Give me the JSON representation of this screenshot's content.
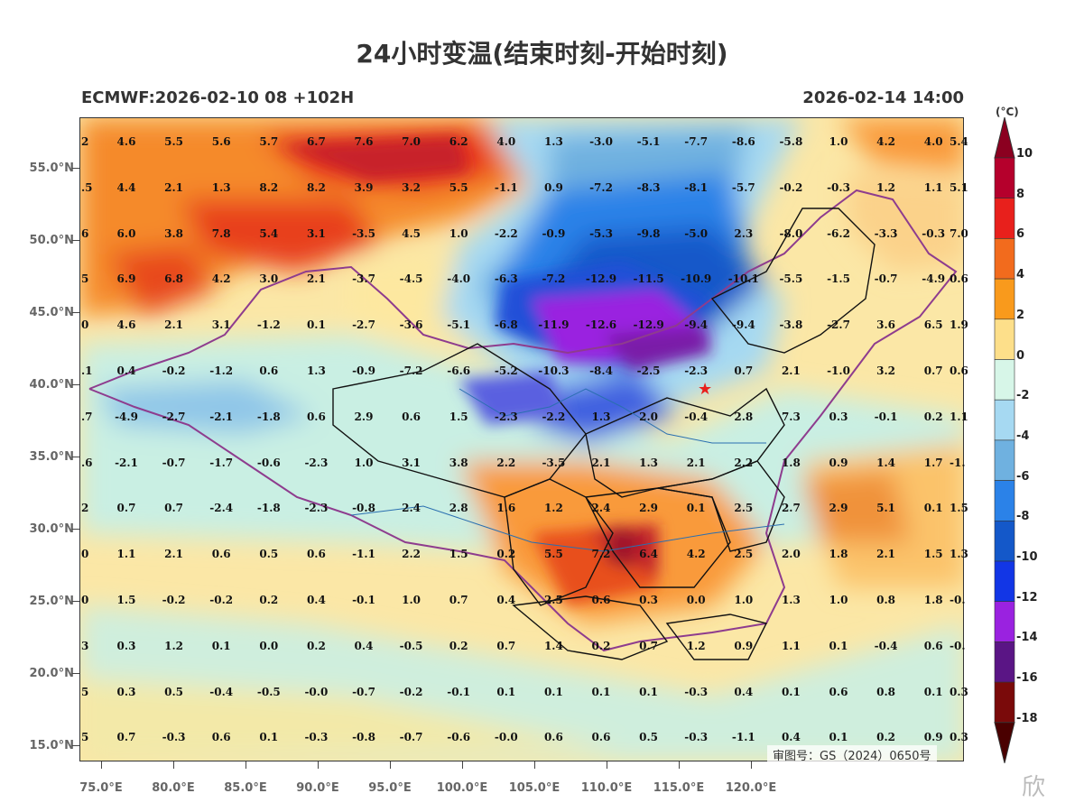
{
  "title": "24小时变温(结束时刻-开始时刻)",
  "subtitle_left": "ECMWF:2026-02-10 08 +102H",
  "subtitle_right": "2026-02-14 14:00",
  "colorbar": {
    "unit": "(°C)",
    "labels": [
      "10",
      "8",
      "6",
      "4",
      "2",
      "0",
      "-2",
      "-4",
      "-6",
      "-8",
      "-10",
      "-12",
      "-14",
      "-16",
      "-18"
    ],
    "colors": [
      "#8b0020",
      "#b5002c",
      "#e8201c",
      "#f26b1d",
      "#f99a1c",
      "#fddf8a",
      "#d7f6e8",
      "#a6d9f2",
      "#6fb1e0",
      "#2b82e8",
      "#1458c9",
      "#1236e6",
      "#9a22e0",
      "#5a1585",
      "#7a0a0a",
      "#4a0000"
    ]
  },
  "lat_labels": [
    "55.0°N",
    "50.0°N",
    "45.0°N",
    "40.0°N",
    "35.0°N",
    "30.0°N",
    "25.0°N",
    "20.0°N",
    "15.0°N"
  ],
  "lon_labels": [
    "75.0°E",
    "80.0°E",
    "85.0°E",
    "90.0°E",
    "95.0°E",
    "100.0°E",
    "105.0°E",
    "110.0°E",
    "115.0°E",
    "120.0°E"
  ],
  "grid_values": [
    [
      "2",
      "4.6",
      "5.5",
      "5.6",
      "5.7",
      "6.7",
      "7.6",
      "7.0",
      "6.2",
      "4.0",
      "1.3",
      "-3.0",
      "-5.1",
      "-7.7",
      "-8.6",
      "-5.8",
      "1.0",
      "4.2",
      "4.0",
      "5.4"
    ],
    [
      ".5",
      "4.4",
      "2.1",
      "1.3",
      "8.2",
      "8.2",
      "3.9",
      "3.2",
      "5.5",
      "-1.1",
      "0.9",
      "-7.2",
      "-8.3",
      "-8.1",
      "-5.7",
      "-0.2",
      "-0.3",
      "1.2",
      "1.1",
      "5.1"
    ],
    [
      "6",
      "6.0",
      "3.8",
      "7.8",
      "5.4",
      "3.1",
      "-3.5",
      "4.5",
      "1.0",
      "-2.2",
      "-0.9",
      "-5.3",
      "-9.8",
      "-5.0",
      "2.3",
      "-8.0",
      "-6.2",
      "-3.3",
      "-0.3",
      "7.0"
    ],
    [
      "5",
      "6.9",
      "6.8",
      "4.2",
      "3.0",
      "2.1",
      "-3.7",
      "-4.5",
      "-4.0",
      "-6.3",
      "-7.2",
      "-12.9",
      "-11.5",
      "-10.9",
      "-10.1",
      "-5.5",
      "-1.5",
      "-0.7",
      "-4.9",
      "0.6"
    ],
    [
      "0",
      "4.6",
      "2.1",
      "3.1",
      "-1.2",
      "0.1",
      "-2.7",
      "-3.6",
      "-5.1",
      "-6.8",
      "-11.9",
      "-12.6",
      "-12.9",
      "-9.4",
      "-9.4",
      "-3.8",
      "-2.7",
      "3.6",
      "6.5",
      "1.9"
    ],
    [
      ".1",
      "0.4",
      "-0.2",
      "-1.2",
      "0.6",
      "1.3",
      "-0.9",
      "-7.2",
      "-6.6",
      "-5.2",
      "-10.3",
      "-8.4",
      "-2.5",
      "-2.3",
      "0.7",
      "2.1",
      "-1.0",
      "3.2",
      "0.7",
      "0.6"
    ],
    [
      ".7",
      "-4.9",
      "-2.7",
      "-2.1",
      "-1.8",
      "0.6",
      "2.9",
      "0.6",
      "1.5",
      "-2.3",
      "-2.2",
      "1.3",
      "2.0",
      "-0.4",
      "2.8",
      "7.3",
      "0.3",
      "-0.1",
      "0.2",
      "1.1"
    ],
    [
      ".6",
      "-2.1",
      "-0.7",
      "-1.7",
      "-0.6",
      "-2.3",
      "1.0",
      "3.1",
      "3.8",
      "2.2",
      "-3.5",
      "2.1",
      "1.3",
      "2.1",
      "2.2",
      "1.8",
      "0.9",
      "1.4",
      "1.7",
      "-1."
    ],
    [
      "2",
      "0.7",
      "0.7",
      "-2.4",
      "-1.8",
      "-2.3",
      "-0.8",
      "2.4",
      "2.8",
      "1.6",
      "1.2",
      "2.4",
      "2.9",
      "0.1",
      "2.5",
      "2.7",
      "2.9",
      "5.1",
      "0.1",
      "1.5"
    ],
    [
      "0",
      "1.1",
      "2.1",
      "0.6",
      "0.5",
      "0.6",
      "-1.1",
      "2.2",
      "1.5",
      "0.2",
      "5.5",
      "7.2",
      "6.4",
      "4.2",
      "2.5",
      "2.0",
      "1.8",
      "2.1",
      "1.5",
      "1.3"
    ],
    [
      "0",
      "1.5",
      "-0.2",
      "-0.2",
      "0.2",
      "0.4",
      "-0.1",
      "1.0",
      "0.7",
      "0.4",
      "2.5",
      "0.6",
      "0.3",
      "0.0",
      "1.0",
      "1.3",
      "1.0",
      "0.8",
      "1.8",
      "-0."
    ],
    [
      "3",
      "0.3",
      "1.2",
      "0.1",
      "0.0",
      "0.2",
      "0.4",
      "-0.5",
      "0.2",
      "0.7",
      "1.4",
      "0.2",
      "0.7",
      "1.2",
      "0.9",
      "1.1",
      "0.1",
      "-0.4",
      "0.6",
      "-0."
    ],
    [
      "5",
      "0.3",
      "0.5",
      "-0.4",
      "-0.5",
      "-0.0",
      "-0.7",
      "-0.2",
      "-0.1",
      "0.1",
      "0.1",
      "0.1",
      "0.1",
      "-0.3",
      "0.4",
      "0.1",
      "0.6",
      "0.8",
      "0.1",
      "0.3"
    ],
    [
      "5",
      "0.7",
      "-0.3",
      "0.6",
      "0.1",
      "-0.3",
      "-0.8",
      "-0.7",
      "-0.6",
      "-0.0",
      "0.6",
      "0.6",
      "0.5",
      "-0.3",
      "-1.1",
      "0.4",
      "0.1",
      "0.2",
      "0.9",
      "0.3"
    ]
  ],
  "watermark": "审图号：GS（2024）0650号",
  "corner_mark": "欣"
}
